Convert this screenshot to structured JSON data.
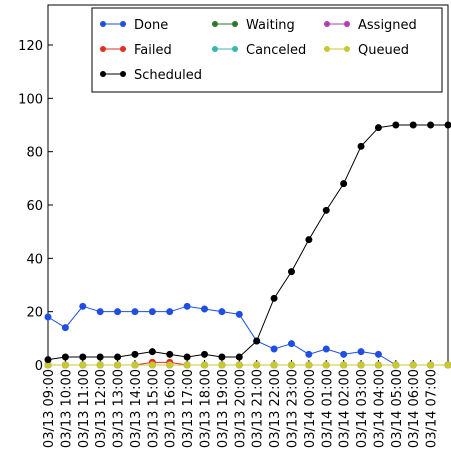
{
  "chart_data": {
    "type": "line",
    "categories": [
      "03/13 09:00",
      "03/13 10:00",
      "03/13 11:00",
      "03/13 12:00",
      "03/13 13:00",
      "03/13 14:00",
      "03/13 15:00",
      "03/13 16:00",
      "03/13 17:00",
      "03/13 18:00",
      "03/13 19:00",
      "03/13 20:00",
      "03/13 21:00",
      "03/13 22:00",
      "03/13 23:00",
      "03/14 00:00",
      "03/14 01:00",
      "03/14 02:00",
      "03/14 03:00",
      "03/14 04:00",
      "03/14 05:00",
      "03/14 06:00",
      "03/14 07:00",
      null
    ],
    "series": [
      {
        "name": "Done",
        "color": "#1f4fe0",
        "values": [
          18,
          14,
          22,
          20,
          20,
          20,
          20,
          20,
          22,
          21,
          20,
          19,
          9,
          6,
          8,
          4,
          6,
          4,
          5,
          4,
          0,
          0,
          0,
          0
        ]
      },
      {
        "name": "Waiting",
        "color": "#2a7a2a",
        "values": [
          0,
          0,
          0,
          0,
          0,
          0,
          0,
          0,
          0,
          0,
          0,
          0,
          0,
          0,
          0,
          0,
          0,
          0,
          0,
          0,
          0,
          0,
          0,
          0
        ]
      },
      {
        "name": "Assigned",
        "color": "#b040b0",
        "values": [
          0,
          0,
          0,
          0,
          0,
          0,
          0,
          0,
          0,
          0,
          0,
          0,
          0,
          0,
          0,
          0,
          0,
          0,
          0,
          0,
          0,
          0,
          0,
          0
        ]
      },
      {
        "name": "Failed",
        "color": "#e03020",
        "values": [
          0,
          0,
          0,
          0,
          0,
          0,
          1,
          1,
          0,
          0,
          0,
          0,
          0,
          0,
          0,
          0,
          0,
          0,
          0,
          0,
          0,
          0,
          0,
          0
        ]
      },
      {
        "name": "Canceled",
        "color": "#3bb5b0",
        "values": [
          0,
          0,
          0,
          0,
          0,
          0,
          0,
          0,
          0,
          0,
          0,
          0,
          0,
          0,
          0,
          0,
          0,
          0,
          0,
          0,
          0,
          0,
          0,
          0
        ]
      },
      {
        "name": "Queued",
        "color": "#c8c830",
        "values": [
          0,
          0,
          0,
          0,
          0,
          0,
          0,
          0,
          0,
          0,
          0,
          0,
          0,
          0,
          0,
          0,
          0,
          0,
          0,
          0,
          0,
          0,
          0,
          0
        ]
      },
      {
        "name": "Scheduled",
        "color": "#000000",
        "values": [
          2,
          3,
          3,
          3,
          3,
          4,
          5,
          4,
          3,
          4,
          3,
          3,
          9,
          25,
          35,
          47,
          58,
          68,
          82,
          89,
          90,
          90,
          90,
          90
        ]
      }
    ],
    "ylim": [
      0,
      135
    ],
    "yticks": [
      0,
      20,
      40,
      60,
      80,
      100,
      120
    ],
    "legend": "upper right"
  }
}
